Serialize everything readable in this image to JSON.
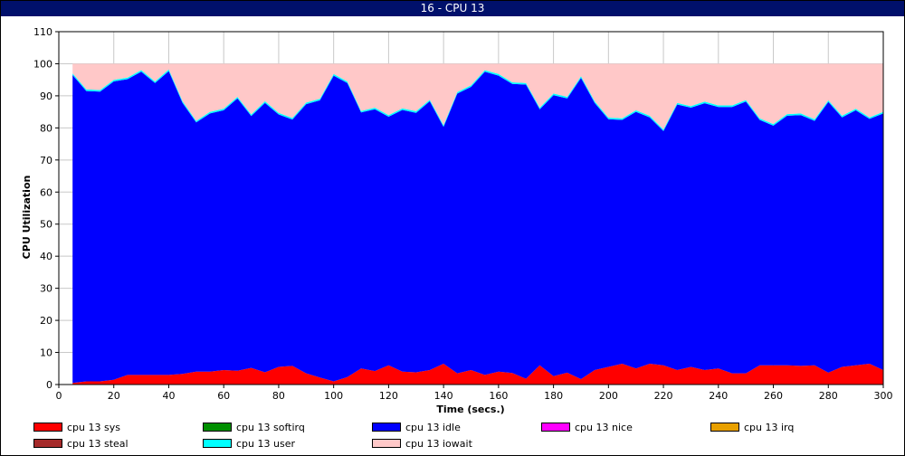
{
  "window": {
    "title": "16 - CPU 13"
  },
  "chart_data": {
    "type": "area",
    "stacked": true,
    "xlabel": "Time (secs.)",
    "ylabel": "CPU Utilization",
    "xlim": [
      0,
      300
    ],
    "ylim": [
      0,
      110
    ],
    "xticks": [
      0,
      20,
      40,
      60,
      80,
      100,
      120,
      140,
      160,
      180,
      200,
      220,
      240,
      260,
      280,
      300
    ],
    "yticks": [
      0,
      10,
      20,
      30,
      40,
      50,
      60,
      70,
      80,
      90,
      100,
      110
    ],
    "grid": true,
    "legend_position": "bottom",
    "x": [
      5,
      10,
      15,
      20,
      25,
      30,
      35,
      40,
      45,
      50,
      55,
      60,
      65,
      70,
      75,
      80,
      85,
      90,
      95,
      100,
      105,
      110,
      115,
      120,
      125,
      130,
      135,
      140,
      145,
      150,
      155,
      160,
      165,
      170,
      175,
      180,
      185,
      190,
      195,
      200,
      205,
      210,
      215,
      220,
      225,
      230,
      235,
      240,
      245,
      250,
      255,
      260,
      265,
      270,
      275,
      280,
      285,
      290,
      295,
      300
    ],
    "series": [
      {
        "name": "cpu 13 sys",
        "color": "#ff0000",
        "values": [
          0.5,
          1,
          1,
          1.5,
          3,
          3,
          3,
          3,
          3.3,
          4,
          4,
          4.5,
          4.3,
          5.2,
          3.8,
          5.5,
          5.8,
          3.5,
          2.2,
          1,
          2.3,
          5,
          4.2,
          6,
          4,
          3.8,
          4.5,
          6.5,
          3.5,
          4.5,
          3,
          4,
          3.6,
          1.8,
          6,
          2.6,
          3.7,
          1.7,
          4.5,
          5.5,
          6.5,
          5,
          6.5,
          6,
          4.5,
          5.5,
          4.5,
          5,
          3.5,
          3.5,
          6,
          6,
          6,
          5.8,
          6,
          3.7,
          5.5,
          6,
          6.5,
          4.5
        ]
      },
      {
        "name": "cpu 13 softirq",
        "color": "#008f00",
        "values": [
          0,
          0,
          0,
          0,
          0,
          0,
          0,
          0,
          0,
          0,
          0,
          0,
          0,
          0,
          0,
          0,
          0,
          0,
          0,
          0,
          0,
          0,
          0,
          0,
          0,
          0,
          0,
          0,
          0,
          0,
          0,
          0,
          0,
          0,
          0,
          0,
          0,
          0,
          0,
          0,
          0,
          0,
          0,
          0,
          0,
          0,
          0,
          0,
          0,
          0,
          0,
          0,
          0,
          0,
          0,
          0,
          0,
          0,
          0,
          0
        ]
      },
      {
        "name": "cpu 13 idle",
        "color": "#0000ff",
        "values": [
          96,
          90.5,
          90.3,
          93,
          92.2,
          94.5,
          91,
          94.7,
          84.5,
          77.7,
          80.5,
          81,
          84.9,
          78.5,
          84,
          78.7,
          76.8,
          83.9,
          86.4,
          95.3,
          91.7,
          79.8,
          81.6,
          77.5,
          81.6,
          80.9,
          83.8,
          73.8,
          87.2,
          88.3,
          94.5,
          92.3,
          90.1,
          91.7,
          79.8,
          87.6,
          85.5,
          93.9,
          83.3,
          77.2,
          76,
          80,
          76.8,
          73,
          82.8,
          80.8,
          83.2,
          81.5,
          83,
          84.7,
          76.5,
          74.7,
          77.8,
          78.2,
          76.2,
          84.4,
          77.8,
          79.5,
          76.3,
          80
        ]
      },
      {
        "name": "cpu 13 nice",
        "color": "#ff00ff",
        "values": [
          0,
          0,
          0,
          0,
          0,
          0,
          0,
          0,
          0,
          0,
          0,
          0,
          0,
          0,
          0,
          0,
          0,
          0,
          0,
          0,
          0,
          0,
          0,
          0,
          0,
          0,
          0,
          0,
          0,
          0,
          0,
          0,
          0,
          0,
          0,
          0,
          0,
          0,
          0,
          0,
          0,
          0,
          0,
          0,
          0,
          0,
          0,
          0,
          0,
          0,
          0,
          0,
          0,
          0,
          0,
          0,
          0,
          0,
          0,
          0
        ]
      },
      {
        "name": "cpu 13 irq",
        "color": "#e8a000",
        "values": [
          0,
          0,
          0,
          0,
          0,
          0,
          0,
          0,
          0,
          0,
          0,
          0,
          0,
          0,
          0,
          0,
          0,
          0,
          0,
          0,
          0,
          0,
          0,
          0,
          0,
          0,
          0,
          0,
          0,
          0,
          0,
          0,
          0,
          0,
          0,
          0,
          0,
          0,
          0,
          0,
          0,
          0,
          0,
          0,
          0,
          0,
          0,
          0,
          0,
          0,
          0,
          0,
          0,
          0,
          0,
          0,
          0,
          0,
          0,
          0
        ]
      },
      {
        "name": "cpu 13 steal",
        "color": "#a52a2a",
        "values": [
          0,
          0,
          0,
          0,
          0,
          0,
          0,
          0,
          0,
          0,
          0,
          0,
          0,
          0,
          0,
          0,
          0,
          0,
          0,
          0,
          0,
          0,
          0,
          0,
          0,
          0,
          0,
          0,
          0,
          0,
          0,
          0,
          0,
          0,
          0,
          0,
          0,
          0,
          0,
          0,
          0,
          0,
          0,
          0,
          0,
          0,
          0,
          0,
          0,
          0,
          0,
          0,
          0,
          0,
          0,
          0,
          0,
          0,
          0,
          0
        ]
      },
      {
        "name": "cpu 13 user",
        "color": "#00ffff",
        "values": [
          0.5,
          0.5,
          0.5,
          0.5,
          0.5,
          0.5,
          0.5,
          0.5,
          0.5,
          0.5,
          0.5,
          0.5,
          0.5,
          0.5,
          0.5,
          0.5,
          0.5,
          0.5,
          0.5,
          0.5,
          0.5,
          0.5,
          0.5,
          0.5,
          0.5,
          0.5,
          0.5,
          0.5,
          0.5,
          0.5,
          0.5,
          0.5,
          0.5,
          0.5,
          0.5,
          0.5,
          0.5,
          0.5,
          0.5,
          0.5,
          0.5,
          0.5,
          0.5,
          0.5,
          0.5,
          0.5,
          0.5,
          0.5,
          0.5,
          0.5,
          0.5,
          0.5,
          0.5,
          0.5,
          0.5,
          0.5,
          0.5,
          0.5,
          0.5,
          0.5
        ]
      },
      {
        "name": "cpu 13 iowait",
        "color": "#ffc8c8",
        "values": [
          3,
          8,
          8.2,
          5,
          4.3,
          2,
          5.5,
          1.8,
          11.7,
          17.8,
          15,
          14,
          10.3,
          15.8,
          11.7,
          15.3,
          16.9,
          12.1,
          10.9,
          3.2,
          5.5,
          14.7,
          13.7,
          16,
          13.9,
          14.8,
          11.2,
          19.2,
          8.8,
          6.7,
          2,
          3.2,
          5.8,
          6,
          13.7,
          9.3,
          10.3,
          3.9,
          11.7,
          16.8,
          17,
          14.5,
          16.2,
          20.5,
          12.2,
          13.2,
          11.8,
          13,
          13,
          11.3,
          17,
          18.8,
          15.7,
          15.5,
          17.3,
          11.4,
          16.2,
          14,
          16.7,
          15
        ]
      }
    ]
  },
  "legend": [
    {
      "label": "cpu 13 sys",
      "color": "#ff0000"
    },
    {
      "label": "cpu 13 softirq",
      "color": "#008f00"
    },
    {
      "label": "cpu 13 idle",
      "color": "#0000ff"
    },
    {
      "label": "cpu 13 nice",
      "color": "#ff00ff"
    },
    {
      "label": "cpu 13 irq",
      "color": "#e8a000"
    },
    {
      "label": "cpu 13 steal",
      "color": "#a52a2a"
    },
    {
      "label": "cpu 13 user",
      "color": "#00ffff"
    },
    {
      "label": "cpu 13 iowait",
      "color": "#ffc8c8"
    }
  ]
}
